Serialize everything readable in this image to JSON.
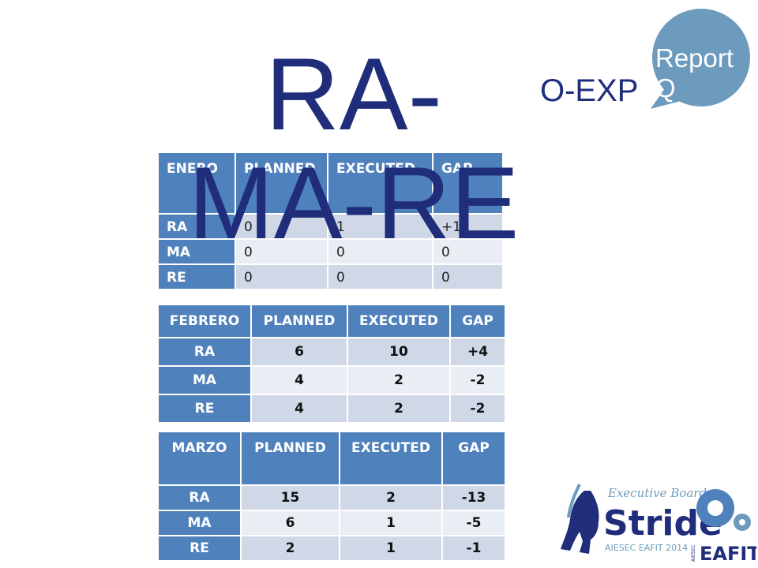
{
  "title": {
    "line1": "RA-",
    "line2": "MA-RE"
  },
  "subtitle": "O-EXP",
  "badge": {
    "label": "Report Q"
  },
  "logo": {
    "script": "Executive Board",
    "name": "Stride",
    "sub": "AIESEC EAFIT 2014",
    "org": "EAFIT",
    "org_small": "AIESEC"
  },
  "colors": {
    "navy": "#1f2d7b",
    "header": "#4f81bd",
    "row_odd": "#d0d8e8",
    "row_even": "#e9edf4",
    "badge": "#6d9bbd"
  },
  "tables": [
    {
      "month": "ENERO",
      "cols": [
        "PLANNED",
        "EXECUTED",
        "GAP"
      ],
      "rows": [
        {
          "label": "RA",
          "planned": "0",
          "executed": "1",
          "gap": "+1"
        },
        {
          "label": "MA",
          "planned": "0",
          "executed": "0",
          "gap": "0"
        },
        {
          "label": "RE",
          "planned": "0",
          "executed": "0",
          "gap": "0"
        }
      ]
    },
    {
      "month": "FEBRERO",
      "cols": [
        "PLANNED",
        "EXECUTED",
        "GAP"
      ],
      "rows": [
        {
          "label": "RA",
          "planned": "6",
          "executed": "10",
          "gap": "+4"
        },
        {
          "label": "MA",
          "planned": "4",
          "executed": "2",
          "gap": "-2"
        },
        {
          "label": "RE",
          "planned": "4",
          "executed": "2",
          "gap": "-2"
        }
      ]
    },
    {
      "month": "MARZO",
      "cols": [
        "PLANNED",
        "EXECUTED",
        "GAP"
      ],
      "rows": [
        {
          "label": "RA",
          "planned": "15",
          "executed": "2",
          "gap": "-13"
        },
        {
          "label": "MA",
          "planned": "6",
          "executed": "1",
          "gap": "-5"
        },
        {
          "label": "RE",
          "planned": "2",
          "executed": "1",
          "gap": "-1"
        }
      ]
    }
  ]
}
